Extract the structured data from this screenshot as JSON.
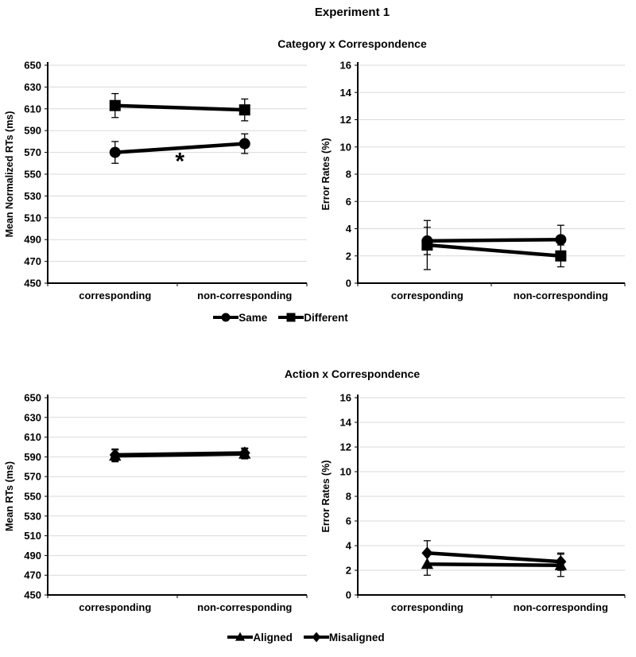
{
  "page": {
    "title": "Experiment 1"
  },
  "chart_data": [
    {
      "section_title": "Category x Correspondence",
      "legend": [
        {
          "label": "Same",
          "marker": "circle"
        },
        {
          "label": "Different",
          "marker": "square"
        }
      ],
      "panels": [
        {
          "type": "line",
          "ylabel": "Mean Normalized RTs (ms)",
          "ylim": [
            450,
            650
          ],
          "ystep": 20,
          "grid": true,
          "categories": [
            "corresponding",
            "non-corresponding"
          ],
          "series": [
            {
              "name": "Same",
              "marker": "circle",
              "values": [
                570,
                578
              ],
              "errors": [
                10,
                9
              ]
            },
            {
              "name": "Different",
              "marker": "square",
              "values": [
                613,
                609
              ],
              "errors": [
                11,
                10
              ]
            }
          ],
          "annotations": [
            {
              "text": "*",
              "x_frac": 0.5,
              "y": 562
            }
          ]
        },
        {
          "type": "line",
          "ylabel": "Error Rates (%)",
          "ylim": [
            0,
            16
          ],
          "ystep": 2,
          "grid": true,
          "categories": [
            "corresponding",
            "non-corresponding"
          ],
          "series": [
            {
              "name": "Same",
              "marker": "circle",
              "values": [
                3.1,
                3.2
              ],
              "errors": [
                1.0,
                1.05
              ]
            },
            {
              "name": "Different",
              "marker": "square",
              "values": [
                2.8,
                2.0
              ],
              "errors": [
                1.8,
                0.8
              ]
            }
          ],
          "annotations": []
        }
      ]
    },
    {
      "section_title": "Action x Correspondence",
      "legend": [
        {
          "label": "Aligned",
          "marker": "triangle"
        },
        {
          "label": "Misaligned",
          "marker": "diamond"
        }
      ],
      "panels": [
        {
          "type": "line",
          "ylabel": "Mean RTs (ms)",
          "ylim": [
            450,
            650
          ],
          "ystep": 20,
          "grid": true,
          "categories": [
            "corresponding",
            "non-corresponding"
          ],
          "series": [
            {
              "name": "Aligned",
              "marker": "triangle",
              "values": [
                591,
                593
              ],
              "errors": [
                6,
                5
              ]
            },
            {
              "name": "Misaligned",
              "marker": "diamond",
              "values": [
                592,
                594
              ],
              "errors": [
                6,
                5
              ]
            }
          ],
          "annotations": []
        },
        {
          "type": "line",
          "ylabel": "Error Rates (%)",
          "ylim": [
            0,
            16
          ],
          "ystep": 2,
          "grid": true,
          "categories": [
            "corresponding",
            "non-corresponding"
          ],
          "series": [
            {
              "name": "Aligned",
              "marker": "triangle",
              "values": [
                2.5,
                2.4
              ],
              "errors": [
                0.9,
                0.9
              ]
            },
            {
              "name": "Misaligned",
              "marker": "diamond",
              "values": [
                3.4,
                2.7
              ],
              "errors": [
                1.0,
                0.7
              ]
            }
          ],
          "annotations": []
        }
      ]
    }
  ]
}
